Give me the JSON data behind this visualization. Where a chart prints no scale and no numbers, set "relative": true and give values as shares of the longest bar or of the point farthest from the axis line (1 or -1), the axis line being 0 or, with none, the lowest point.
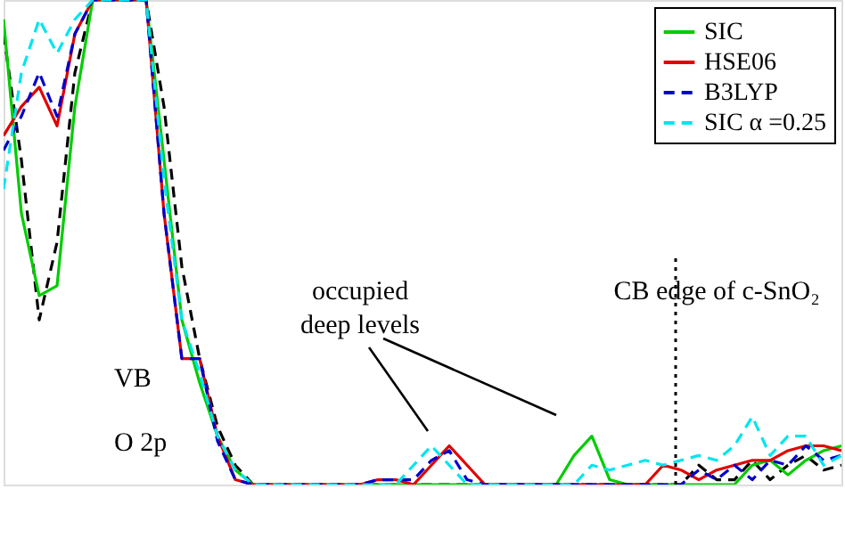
{
  "chart_data": {
    "type": "line",
    "relative": true,
    "categories": [
      null,
      null,
      null,
      null,
      null,
      null,
      null,
      null,
      null,
      null,
      null,
      null,
      null,
      null,
      null,
      null,
      null,
      null,
      null,
      null,
      null,
      null,
      null,
      null,
      null,
      null,
      null,
      null,
      null,
      null,
      null,
      null,
      null,
      null,
      null,
      null,
      null,
      null,
      null,
      null,
      null,
      null,
      null,
      null,
      null,
      null,
      null,
      null
    ],
    "series": [
      {
        "name": "SIC",
        "color": "#00cc00",
        "line_style": "solid",
        "values": [
          0.96,
          0.56,
          0.39,
          0.41,
          0.78,
          1,
          1,
          1,
          1,
          0.67,
          0.34,
          0.21,
          0.1,
          0.03,
          0,
          0,
          0,
          0,
          0,
          0,
          0,
          0,
          0,
          0,
          0,
          0,
          0,
          0,
          0,
          0,
          0,
          0,
          0.06,
          0.1,
          0.01,
          0,
          0,
          0,
          0,
          0,
          0,
          0,
          0.04,
          0.05,
          0.02,
          0.05,
          0.07,
          0.08
        ]
      },
      {
        "name": "HSE06",
        "color": "#e00000",
        "line_style": "solid",
        "values": [
          0.72,
          0.78,
          0.82,
          0.74,
          0.93,
          1,
          1,
          1,
          1,
          0.56,
          0.26,
          0.26,
          0.1,
          0.01,
          0,
          0,
          0,
          0,
          0,
          0,
          0,
          0.01,
          0.01,
          0,
          0.04,
          0.08,
          0.04,
          0,
          0,
          0,
          0,
          0,
          0,
          0,
          0,
          0,
          0,
          0.04,
          0.03,
          0.01,
          0.03,
          0.04,
          0.05,
          0.05,
          0.07,
          0.08,
          0.08,
          0.07
        ]
      },
      {
        "name": "B3LYP",
        "color": "#0000cc",
        "line_style": "dashed",
        "values": [
          0.69,
          0.76,
          0.85,
          0.76,
          0.93,
          1,
          1,
          1,
          1,
          0.56,
          0.26,
          0.26,
          0.09,
          0.01,
          0,
          0,
          0,
          0,
          0,
          0,
          0,
          0.01,
          0.01,
          0.01,
          0.05,
          0.07,
          0.01,
          0,
          0,
          0,
          0,
          0,
          0,
          0,
          0,
          0,
          0,
          0,
          0,
          0.03,
          0.01,
          0.04,
          0.01,
          0.05,
          0.04,
          0.08,
          0.05,
          0.06
        ]
      },
      {
        "name": "SIC α =0.25",
        "color": "#00e5ee",
        "line_style": "dashed",
        "values": [
          0.61,
          0.85,
          0.96,
          0.89,
          0.96,
          1,
          1,
          1,
          1,
          0.63,
          0.34,
          0.23,
          0.1,
          0.03,
          0,
          0,
          0,
          0,
          0,
          0,
          0,
          0,
          0,
          0.04,
          0.08,
          0.04,
          0,
          0,
          0,
          0,
          0,
          0,
          0,
          0.04,
          0.03,
          0.04,
          0.05,
          0.04,
          0.05,
          0.06,
          0.05,
          0.08,
          0.14,
          0.06,
          0.1,
          0.1,
          0.04,
          0.06
        ]
      },
      {
        "color": "#000000",
        "line_style": "dashed",
        "values": [
          0.93,
          0.67,
          0.34,
          0.5,
          0.85,
          1,
          1,
          1,
          1,
          0.78,
          0.45,
          0.26,
          0.12,
          0.04,
          0,
          0,
          0,
          0,
          0,
          0,
          0,
          0,
          0,
          0,
          0,
          0,
          0,
          0,
          0,
          0,
          0,
          0,
          0,
          0,
          0,
          0,
          0,
          0,
          0,
          0.04,
          0.01,
          0.01,
          0.05,
          0.01,
          0.04,
          0.06,
          0.03,
          0.04
        ]
      }
    ],
    "annotations": [
      "VB",
      "O 2p",
      "occupied",
      "deep levels",
      "CB edge of c-SnO₂"
    ],
    "legend": "top right"
  }
}
